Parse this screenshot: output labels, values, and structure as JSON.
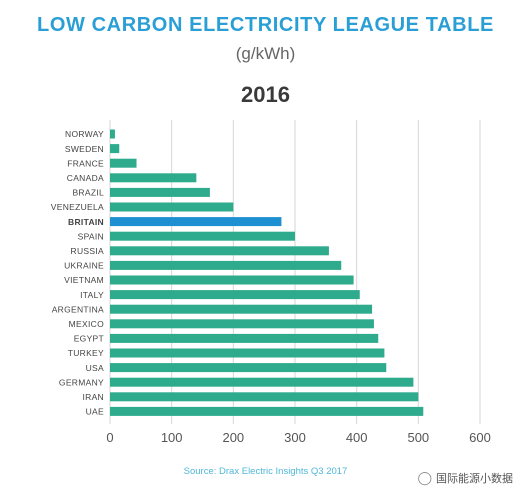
{
  "header": {
    "title": "LOW CARBON ELECTRICITY LEAGUE TABLE",
    "unit": "(g/kWh)",
    "year": "2016"
  },
  "footer": {
    "source": "Source: Drax Electric Insights Q3 2017",
    "watermark": "国际能源小数据",
    "watermark_icon": "wechat-icon"
  },
  "colors": {
    "bar": "#2eab8d",
    "highlight": "#1e8fd0",
    "grid": "#d6d6d6",
    "tick_label": "#555555",
    "category_label": "#444444"
  },
  "chart_data": {
    "type": "bar",
    "orientation": "horizontal",
    "title": "LOW CARBON ELECTRICITY LEAGUE TABLE",
    "subtitle": "(g/kWh) 2016",
    "categories": [
      "NORWAY",
      "SWEDEN",
      "FRANCE",
      "CANADA",
      "BRAZIL",
      "VENEZUELA",
      "BRITAIN",
      "SPAIN",
      "RUSSIA",
      "UKRAINE",
      "VIETNAM",
      "ITALY",
      "ARGENTINA",
      "MEXICO",
      "EGYPT",
      "TURKEY",
      "USA",
      "GERMANY",
      "IRAN",
      "UAE"
    ],
    "values": [
      8,
      15,
      43,
      140,
      162,
      200,
      278,
      300,
      355,
      375,
      395,
      405,
      425,
      428,
      435,
      445,
      448,
      492,
      500,
      508
    ],
    "highlight": "BRITAIN",
    "xlim": [
      0,
      600
    ],
    "xticks": [
      0,
      100,
      200,
      300,
      400,
      500,
      600
    ],
    "grid": true
  }
}
